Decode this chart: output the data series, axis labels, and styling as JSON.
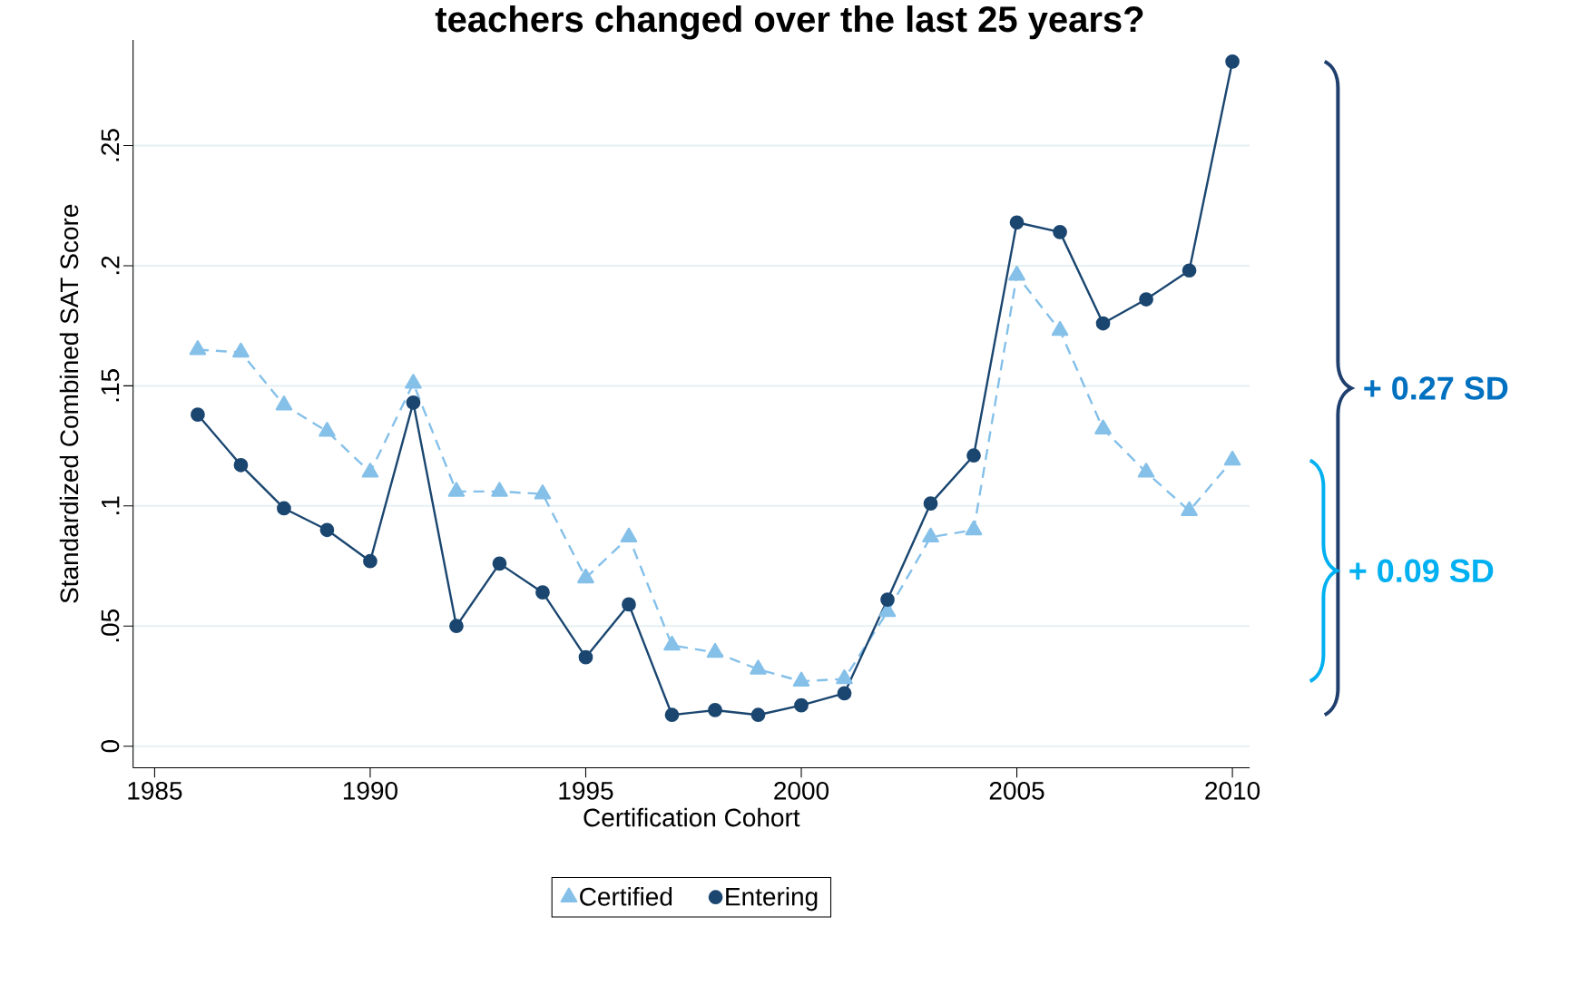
{
  "chart_data": {
    "type": "line",
    "title": "teachers changed over the last 25 years?",
    "xlabel": "Certification Cohort",
    "ylabel": "Standardized Combined SAT Score",
    "x": [
      1986,
      1987,
      1988,
      1989,
      1990,
      1991,
      1992,
      1993,
      1994,
      1995,
      1996,
      1997,
      1998,
      1999,
      2000,
      2001,
      2002,
      2003,
      2004,
      2005,
      2006,
      2007,
      2008,
      2009,
      2010
    ],
    "series": [
      {
        "name": "Certified",
        "color": "#85c0e9",
        "marker": "triangle",
        "line_style": "dashed",
        "values": [
          0.165,
          0.164,
          0.142,
          0.131,
          0.114,
          0.151,
          0.106,
          0.106,
          0.105,
          0.07,
          0.087,
          0.042,
          0.039,
          0.032,
          0.027,
          0.028,
          0.056,
          0.087,
          0.09,
          0.196,
          0.173,
          0.132,
          0.114,
          0.098,
          0.119
        ]
      },
      {
        "name": "Entering",
        "color": "#1a4670",
        "marker": "circle",
        "line_style": "solid",
        "values": [
          0.138,
          0.117,
          0.099,
          0.09,
          0.077,
          0.143,
          0.05,
          0.076,
          0.064,
          0.037,
          0.059,
          0.013,
          0.015,
          0.013,
          0.017,
          0.022,
          0.061,
          0.101,
          0.121,
          0.218,
          0.214,
          0.176,
          0.186,
          0.198,
          0.285
        ]
      }
    ],
    "xlim": [
      1984.5,
      2010.4
    ],
    "ylim": [
      -0.009,
      0.294
    ],
    "xticks": [
      1985,
      1990,
      1995,
      2000,
      2005,
      2010
    ],
    "yticks": [
      0,
      {
        "value": 0.05,
        "label": ".05"
      },
      {
        "value": 0.1,
        "label": ".1"
      },
      {
        "value": 0.15,
        "label": ".15"
      },
      {
        "value": 0.2,
        "label": ".2"
      },
      {
        "value": 0.25,
        "label": ".25"
      }
    ],
    "grid": "y",
    "legend": "bottom",
    "annotations": [
      "+ 0.27 SD",
      "+ 0.09 SD"
    ]
  }
}
